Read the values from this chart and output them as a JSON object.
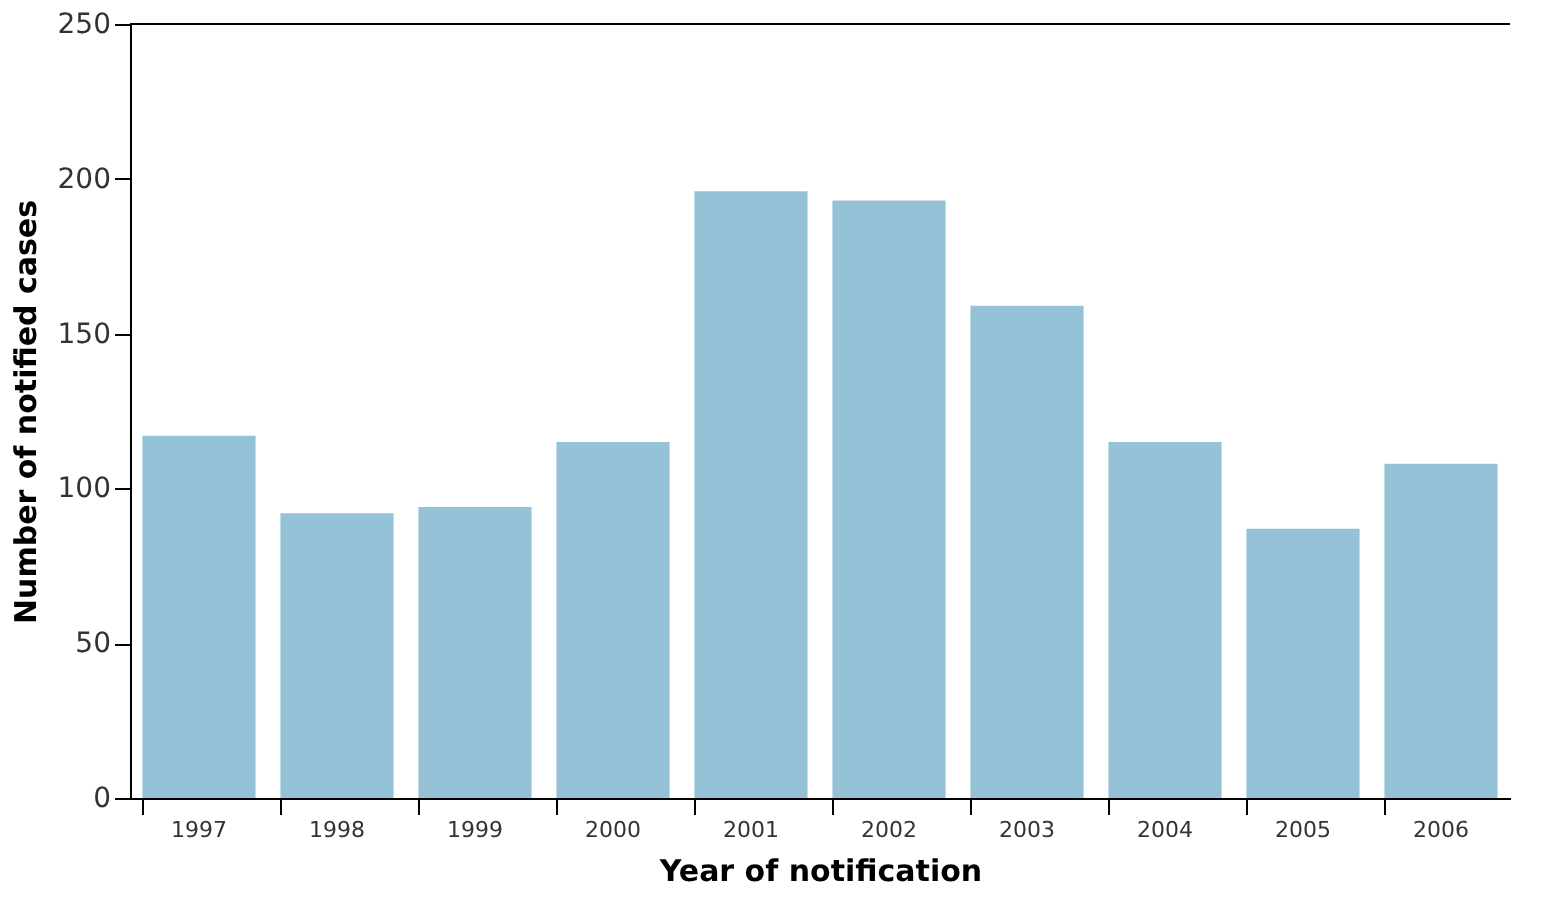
{
  "chart_data": {
    "type": "bar",
    "xlabel": "Year of notification",
    "ylabel": "Number of notified cases",
    "categories": [
      "1997",
      "1998",
      "1999",
      "2000",
      "2001",
      "2002",
      "2003",
      "2004",
      "2005",
      "2006"
    ],
    "values": [
      117,
      92,
      94,
      115,
      196,
      193,
      159,
      115,
      87,
      108
    ],
    "color": "#96c2d7",
    "ylim": [
      0,
      250
    ],
    "yticks": [
      0,
      50,
      100,
      150,
      200,
      250
    ],
    "grid": false
  }
}
